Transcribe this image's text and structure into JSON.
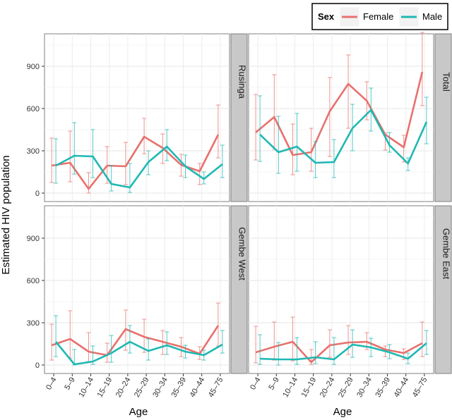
{
  "chart_data": {
    "type": "line",
    "ylabel": "Estimated HIV population",
    "xlabel": "Age",
    "categories": [
      "0–4",
      "5–9",
      "10–14",
      "15–19",
      "20–24",
      "25–29",
      "30–34",
      "35–39",
      "40–44",
      "45–75"
    ],
    "yticks": [
      0,
      300,
      600,
      900
    ],
    "ylim": [
      -60,
      1130
    ],
    "grid": true,
    "legend": {
      "title": "Sex",
      "position": "top-right",
      "entries": [
        {
          "name": "Female",
          "color": "#e8716d"
        },
        {
          "name": "Male",
          "color": "#1fb8b3"
        }
      ]
    },
    "facets": [
      {
        "label": "Rusinga",
        "series": [
          {
            "name": "Female",
            "values": [
              195,
              215,
              30,
              195,
              190,
              400,
              320,
              200,
              155,
              415
            ],
            "lower": [
              75,
              80,
              0,
              70,
              60,
              280,
              210,
              120,
              60,
              250
            ],
            "upper": [
              390,
              440,
              145,
              330,
              360,
              530,
              420,
              275,
              210,
              625
            ]
          },
          {
            "name": "Male",
            "values": [
              195,
              265,
              260,
              65,
              40,
              220,
              330,
              190,
              100,
              205
            ],
            "lower": [
              70,
              135,
              110,
              15,
              5,
              130,
              230,
              110,
              65,
              110
            ],
            "upper": [
              385,
              500,
              450,
              195,
              210,
              300,
              450,
              270,
              150,
              340
            ]
          }
        ]
      },
      {
        "label": "Total",
        "series": [
          {
            "name": "Female",
            "values": [
              430,
              540,
              270,
              290,
              580,
              775,
              655,
              415,
              325,
              860
            ],
            "lower": [
              235,
              310,
              130,
              155,
              260,
              460,
              520,
              305,
              220,
              620
            ],
            "upper": [
              700,
              840,
              490,
              460,
              820,
              980,
              790,
              425,
              410,
              1140
            ]
          },
          {
            "name": "Male",
            "values": [
              415,
              290,
              330,
              215,
              220,
              460,
              590,
              340,
              210,
              505
            ],
            "lower": [
              225,
              140,
              155,
              110,
              110,
              300,
              440,
              290,
              160,
              350
            ],
            "upper": [
              690,
              545,
              565,
              365,
              380,
              630,
              745,
              430,
              250,
              680
            ]
          }
        ]
      },
      {
        "label": "Gembe West",
        "series": [
          {
            "name": "Female",
            "values": [
              140,
              185,
              95,
              70,
              255,
              200,
              165,
              130,
              80,
              280
            ],
            "lower": [
              35,
              50,
              25,
              20,
              105,
              90,
              75,
              60,
              40,
              135
            ],
            "upper": [
              290,
              385,
              230,
              155,
              390,
              325,
              245,
              195,
              130,
              440
            ]
          },
          {
            "name": "Male",
            "values": [
              165,
              5,
              25,
              85,
              165,
              100,
              140,
              95,
              70,
              145
            ],
            "lower": [
              60,
              0,
              5,
              20,
              85,
              35,
              75,
              50,
              35,
              85
            ],
            "upper": [
              350,
              110,
              135,
              210,
              280,
              185,
              235,
              140,
              105,
              245
            ]
          }
        ]
      },
      {
        "label": "Gembe East",
        "series": [
          {
            "name": "Female",
            "values": [
              90,
              130,
              165,
              20,
              140,
              160,
              165,
              110,
              85,
              155
            ],
            "lower": [
              15,
              35,
              30,
              5,
              55,
              75,
              110,
              60,
              40,
              60
            ],
            "upper": [
              275,
              305,
              340,
              110,
              250,
              280,
              230,
              135,
              115,
              305
            ]
          },
          {
            "name": "Male",
            "values": [
              45,
              40,
              40,
              55,
              40,
              145,
              125,
              90,
              45,
              155
            ],
            "lower": [
              5,
              0,
              5,
              10,
              5,
              55,
              60,
              45,
              10,
              75
            ],
            "upper": [
              215,
              160,
              195,
              165,
              195,
              250,
              190,
              145,
              85,
              245
            ]
          }
        ]
      }
    ]
  }
}
